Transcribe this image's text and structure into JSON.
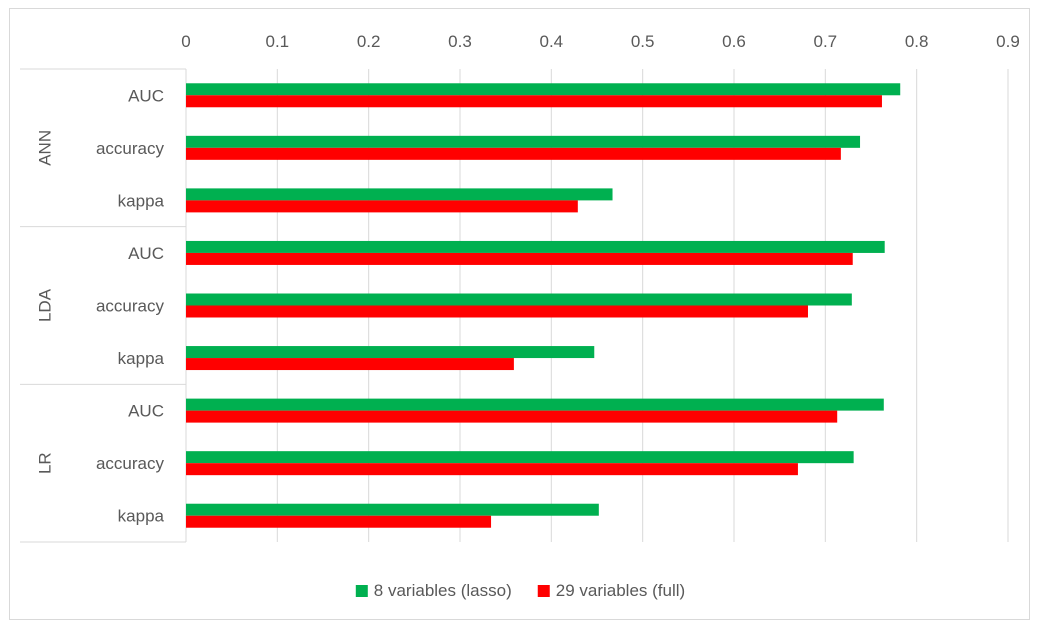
{
  "chart_data": {
    "type": "bar",
    "orientation": "horizontal",
    "title": "",
    "xlabel": "",
    "ylabel": "",
    "xlim": [
      0,
      0.9
    ],
    "x_ticks": [
      "0",
      "0.1",
      "0.2",
      "0.3",
      "0.4",
      "0.5",
      "0.6",
      "0.7",
      "0.8",
      "0.9"
    ],
    "x_axis_position": "top",
    "grid": true,
    "legend_position": "bottom",
    "groups": [
      {
        "name": "ANN",
        "categories": [
          "AUC",
          "accuracy",
          "kappa"
        ]
      },
      {
        "name": "LDA",
        "categories": [
          "AUC",
          "accuracy",
          "kappa"
        ]
      },
      {
        "name": "LR",
        "categories": [
          "AUC",
          "accuracy",
          "kappa"
        ]
      }
    ],
    "series": [
      {
        "name": "8 variables (lasso)",
        "color": "#00b050",
        "values": [
          0.782,
          0.738,
          0.467,
          0.765,
          0.729,
          0.447,
          0.764,
          0.731,
          0.452
        ]
      },
      {
        "name": "29 variables (full)",
        "color": "#ff0000",
        "values": [
          0.762,
          0.717,
          0.429,
          0.73,
          0.681,
          0.359,
          0.713,
          0.67,
          0.334
        ]
      }
    ]
  }
}
